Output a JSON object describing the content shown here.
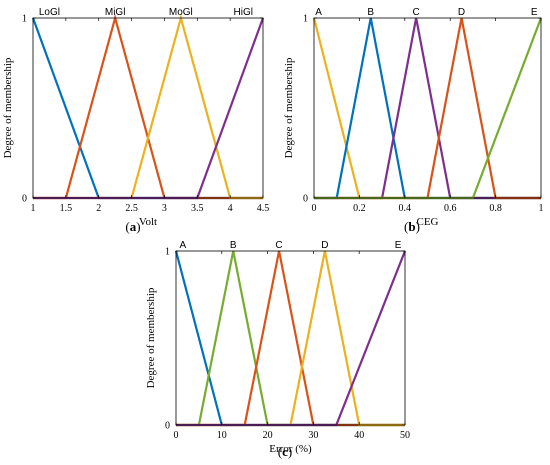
{
  "colors": [
    "#0072BD",
    "#D95319",
    "#EDB120",
    "#7E2F8E",
    "#77AC30"
  ],
  "chart_data": [
    {
      "type": "line",
      "panel": "(a)",
      "xlabel": "Volt",
      "ylabel": "Degree of membership",
      "xlim": [
        1,
        4.5
      ],
      "ylim": [
        0,
        1
      ],
      "xticks": [
        1,
        1.5,
        2,
        2.5,
        3,
        3.5,
        4,
        4.5
      ],
      "xtick_labels": [
        "1",
        "1.5",
        "2",
        "2.5",
        "3",
        "3.5",
        "4",
        "4.5"
      ],
      "yticks": [
        0,
        1
      ],
      "ytick_labels": [
        "0",
        "1"
      ],
      "series": [
        {
          "name": "LoGl",
          "x": [
            1,
            2,
            4.5
          ],
          "y": [
            1,
            0,
            0
          ],
          "color": "#0072BD"
        },
        {
          "name": "MiGl",
          "x": [
            1,
            1.5,
            2.25,
            3,
            4.5
          ],
          "y": [
            0,
            0,
            1,
            0,
            0
          ],
          "color": "#D95319"
        },
        {
          "name": "MoGl",
          "x": [
            1,
            2.5,
            3.25,
            4,
            4.5
          ],
          "y": [
            0,
            0,
            1,
            0,
            0
          ],
          "color": "#EDB120"
        },
        {
          "name": "HiGl",
          "x": [
            1,
            3.5,
            4.5
          ],
          "y": [
            0,
            0,
            1
          ],
          "color": "#7E2F8E"
        }
      ],
      "label_x": [
        1.25,
        2.25,
        3.25,
        4.2
      ]
    },
    {
      "type": "line",
      "panel": "(b)",
      "xlabel": "CEG",
      "ylabel": "Degree of membership",
      "xlim": [
        0,
        1
      ],
      "ylim": [
        0,
        1
      ],
      "xticks": [
        0,
        0.2,
        0.4,
        0.6,
        0.8,
        1
      ],
      "xtick_labels": [
        "0",
        "0.2",
        "0.4",
        "0.6",
        "0.8",
        "1"
      ],
      "yticks": [
        0,
        1
      ],
      "ytick_labels": [
        "0",
        "1"
      ],
      "series": [
        {
          "name": "A",
          "x": [
            0,
            0.2,
            1
          ],
          "y": [
            1,
            0,
            0
          ],
          "color": "#EDB120"
        },
        {
          "name": "B",
          "x": [
            0,
            0.1,
            0.25,
            0.4,
            1
          ],
          "y": [
            0,
            0,
            1,
            0,
            0
          ],
          "color": "#0072BD"
        },
        {
          "name": "C",
          "x": [
            0,
            0.3,
            0.45,
            0.6,
            1
          ],
          "y": [
            0,
            0,
            1,
            0,
            0
          ],
          "color": "#7E2F8E"
        },
        {
          "name": "D",
          "x": [
            0,
            0.5,
            0.65,
            0.8,
            1
          ],
          "y": [
            0,
            0,
            1,
            0,
            0
          ],
          "color": "#D95319"
        },
        {
          "name": "E",
          "x": [
            0,
            0.7,
            1
          ],
          "y": [
            0,
            0,
            1
          ],
          "color": "#77AC30"
        }
      ],
      "label_x": [
        0.02,
        0.25,
        0.45,
        0.65,
        0.97
      ]
    },
    {
      "type": "line",
      "panel": "(c)",
      "xlabel": "Error (%)",
      "ylabel": "Degree of membership",
      "xlim": [
        0,
        50
      ],
      "ylim": [
        0,
        1
      ],
      "xticks": [
        0,
        10,
        20,
        30,
        40,
        50
      ],
      "xtick_labels": [
        "0",
        "10",
        "20",
        "30",
        "40",
        "50"
      ],
      "yticks": [
        0,
        1
      ],
      "ytick_labels": [
        "0",
        "1"
      ],
      "series": [
        {
          "name": "A",
          "x": [
            0,
            10,
            50
          ],
          "y": [
            1,
            0,
            0
          ],
          "color": "#0072BD"
        },
        {
          "name": "B",
          "x": [
            0,
            5,
            12.5,
            20,
            50
          ],
          "y": [
            0,
            0,
            1,
            0,
            0
          ],
          "color": "#77AC30"
        },
        {
          "name": "C",
          "x": [
            0,
            15,
            22.5,
            30,
            50
          ],
          "y": [
            0,
            0,
            1,
            0,
            0
          ],
          "color": "#D95319"
        },
        {
          "name": "D",
          "x": [
            0,
            25,
            32.5,
            40,
            50
          ],
          "y": [
            0,
            0,
            1,
            0,
            0
          ],
          "color": "#EDB120"
        },
        {
          "name": "E",
          "x": [
            0,
            35,
            50
          ],
          "y": [
            0,
            0,
            1
          ],
          "color": "#7E2F8E"
        }
      ],
      "label_x": [
        1.5,
        12.5,
        22.5,
        32.5,
        48.5
      ]
    }
  ]
}
